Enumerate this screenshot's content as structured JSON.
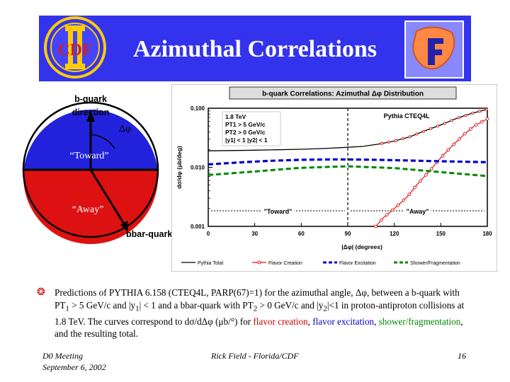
{
  "slide": {
    "title": "Azimuthal Correlations",
    "logo_left_text": "CDF",
    "colors": {
      "banner": "#3333ee",
      "toward": "#2222dd",
      "away": "#dd1111",
      "pythia_total": "#000000",
      "flavor_creation": "#dd1111",
      "flavor_excitation": "#0000cc",
      "shower": "#008800"
    }
  },
  "diagram": {
    "bquark_label": "b-quark direction",
    "delta_phi_label": "Δφ",
    "toward_label": "“Toward”",
    "away_label": "“Away”",
    "bbar_label": "bbar-quark"
  },
  "chart_data": {
    "type": "line",
    "title": "b-quark Correlations: Azimuthal Δφ Distribution",
    "xlabel": "|Δφ| (degrees)",
    "ylabel": "dσ/dφ (μb/deg)",
    "xlim": [
      0,
      180
    ],
    "ylim": [
      0.001,
      0.1
    ],
    "yscale": "log",
    "xticks": [
      "0",
      "30",
      "60",
      "90",
      "120",
      "150",
      "180"
    ],
    "yticks": [
      "0.100",
      "0.010",
      "0.001"
    ],
    "cuts": [
      "1.8 TeV",
      "PT1 > 5 GeV/c",
      "PT2 > 0 GeV/c",
      "|y1| < 1 |y2| < 1"
    ],
    "model_label": "Pythia CTEQ4L",
    "region_labels": [
      "\"Toward\"",
      "\"Away\""
    ],
    "series": [
      {
        "name": "Pythia Total",
        "x": [
          0,
          15,
          30,
          45,
          60,
          75,
          90,
          100,
          110,
          120,
          130,
          140,
          150,
          160,
          170,
          180
        ],
        "y": [
          0.019,
          0.0192,
          0.0195,
          0.0198,
          0.0202,
          0.0208,
          0.0218,
          0.0226,
          0.0248,
          0.0278,
          0.0328,
          0.0418,
          0.0522,
          0.067,
          0.082,
          0.096
        ]
      },
      {
        "name": "Flavor Creation",
        "x": [
          108,
          113,
          120,
          128,
          135,
          143,
          150,
          158,
          165,
          172,
          180
        ],
        "y": [
          0.001,
          0.0014,
          0.002,
          0.0031,
          0.0052,
          0.0088,
          0.0145,
          0.024,
          0.036,
          0.051,
          0.066
        ]
      },
      {
        "name": "Flavor Excitation",
        "x": [
          0,
          20,
          40,
          60,
          80,
          100,
          120,
          140,
          160,
          180
        ],
        "y": [
          0.0112,
          0.0121,
          0.0129,
          0.0134,
          0.0136,
          0.0135,
          0.0132,
          0.0128,
          0.0125,
          0.0122
        ]
      },
      {
        "name": "Shower/Fragmentation",
        "x": [
          0,
          30,
          60,
          90,
          120,
          150,
          180
        ],
        "y": [
          0.0074,
          0.0085,
          0.0098,
          0.0104,
          0.0097,
          0.0083,
          0.0071
        ]
      }
    ]
  },
  "paragraph": {
    "part1": "Predictions of PYTHIA 6.158 (CTEQ4L, PARP(67)=1) for the azimuthal angle, Δφ, between a b-quark with PT",
    "sub1": "1",
    "part2": " > 5 GeV/c and |y",
    "sub2": "1",
    "part3": "| < 1 and a bbar-quark with PT",
    "sub3": "2",
    "part4": " > 0 GeV/c and |y",
    "sub4": "2",
    "part5": "|<1 in proton-antiproton collisions at 1.8 TeV. The curves correspond to dσ/dΔφ (μb/°) for ",
    "flavor_creation": "flavor creation",
    "comma1": ", ",
    "flavor_excitation": "flavor excitation",
    "comma2": ", ",
    "shower": "shower/fragmentation",
    "part6": ", and the resulting total."
  },
  "footer": {
    "meeting": "D0 Meeting",
    "date": "September 6, 2002",
    "author": "Rick Field - Florida/CDF",
    "page": "16"
  }
}
